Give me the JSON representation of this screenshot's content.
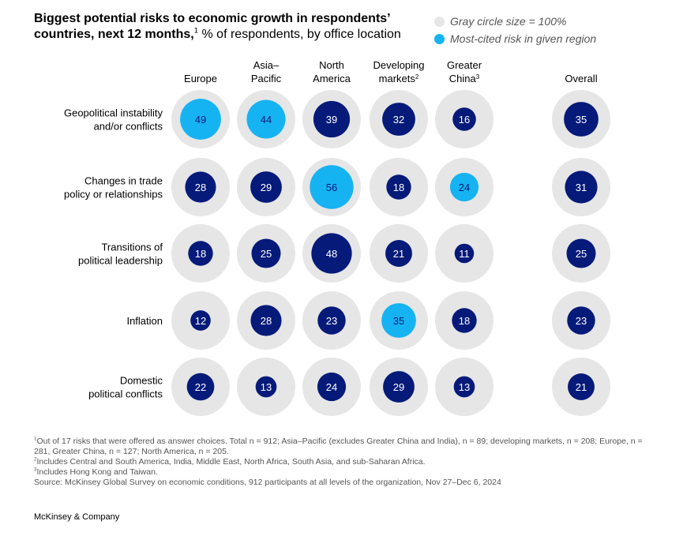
{
  "title": {
    "bold": "Biggest potential risks to economic growth in respondents’ countries, next 12 months,",
    "sup": "1",
    "regular": " % of respondents, by office location"
  },
  "legend": [
    {
      "label": "Gray circle size = 100%",
      "color": "#e6e6e6"
    },
    {
      "label": "Most-cited risk in given region",
      "color": "#16b3f2"
    }
  ],
  "colors": {
    "dark": "#061a7a",
    "highlight": "#16b3f2",
    "gray": "#e6e6e6"
  },
  "chart_data": {
    "type": "bubble-matrix",
    "columns": [
      {
        "lines": [
          "Europe"
        ],
        "sup": ""
      },
      {
        "lines": [
          "Asia–",
          "Pacific"
        ],
        "sup": ""
      },
      {
        "lines": [
          "North",
          "America"
        ],
        "sup": ""
      },
      {
        "lines": [
          "Developing",
          "markets"
        ],
        "sup": "2"
      },
      {
        "lines": [
          "Greater",
          "China"
        ],
        "sup": "3"
      },
      {
        "lines": [
          "Overall"
        ],
        "sup": ""
      }
    ],
    "rows": [
      {
        "lines": [
          "Geopolitical instability",
          "and/or conflicts"
        ],
        "values": [
          49,
          44,
          39,
          32,
          16,
          35
        ],
        "highlight": [
          true,
          true,
          false,
          false,
          false,
          false
        ]
      },
      {
        "lines": [
          "Changes in trade",
          "policy or relationships"
        ],
        "values": [
          28,
          29,
          56,
          18,
          24,
          31
        ],
        "highlight": [
          false,
          false,
          true,
          false,
          true,
          false
        ]
      },
      {
        "lines": [
          "Transitions of",
          "political leadership"
        ],
        "values": [
          18,
          25,
          48,
          21,
          11,
          25
        ],
        "highlight": [
          false,
          false,
          false,
          false,
          false,
          false
        ]
      },
      {
        "lines": [
          "Inflation"
        ],
        "values": [
          12,
          28,
          23,
          35,
          18,
          23
        ],
        "highlight": [
          false,
          false,
          false,
          true,
          false,
          false
        ]
      },
      {
        "lines": [
          "Domestic",
          "political conflicts"
        ],
        "values": [
          22,
          13,
          24,
          29,
          13,
          21
        ],
        "highlight": [
          false,
          false,
          false,
          false,
          false,
          false
        ]
      }
    ],
    "scale_max": 100
  },
  "footnotes": [
    {
      "sup": "1",
      "text": "Out of 17 risks that were offered as answer choices. Total n = 912; Asia–Pacific (excludes Greater China and India), n = 89; developing markets, n = 208; Europe, n = 281, Greater China, n = 127; North America, n = 205."
    },
    {
      "sup": "2",
      "text": "Includes Central and South America, India, Middle East, North Africa, South Asia, and sub-Saharan Africa."
    },
    {
      "sup": "3",
      "text": "Includes Hong Kong and Taiwan."
    },
    {
      "sup": "",
      "text": "Source: McKinsey Global Survey on economic conditions, 912 participants at all levels of the organization, Nov 27–Dec 6, 2024"
    }
  ],
  "brand": "McKinsey & Company"
}
